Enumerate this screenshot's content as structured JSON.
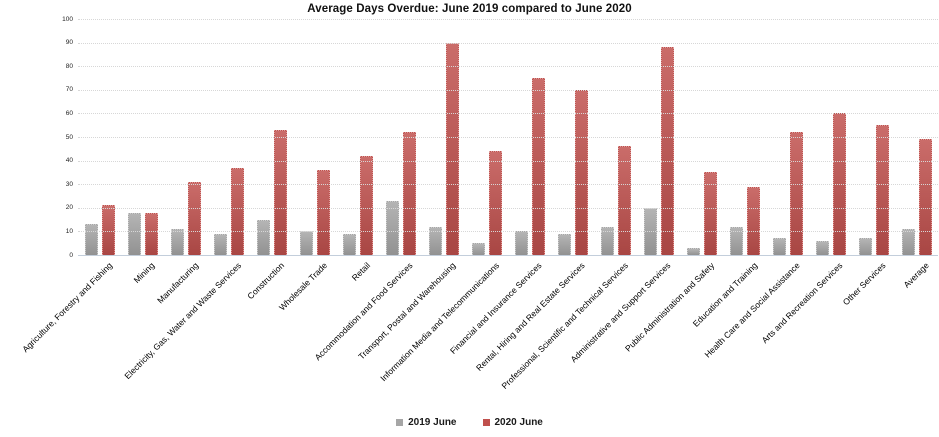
{
  "title": "Average Days Overdue: June 2019 compared to June 2020",
  "colors": {
    "series_2019": "#a6a6a6",
    "series_2020": "#c0504d",
    "gridline": "#d7d7d7",
    "axis_line": "#c3cedb",
    "background": "#ffffff"
  },
  "legend": [
    {
      "label": "2019 June",
      "color": "#a6a6a6"
    },
    {
      "label": "2020 June",
      "color": "#c0504d"
    }
  ],
  "chart_data": {
    "type": "bar",
    "title": "Average Days Overdue: June 2019 compared to June 2020",
    "xlabel": "",
    "ylabel": "",
    "ylim": [
      0,
      100
    ],
    "yticks": [
      0,
      10,
      20,
      30,
      40,
      50,
      60,
      70,
      80,
      90,
      100
    ],
    "grid": true,
    "grid_style": "dotted",
    "legend_position": "bottom",
    "categories": [
      "Agriculture, Forestry and Fishing",
      "Mining",
      "Manufacturing",
      "Electricity, Gas, Water and Waste Services",
      "Construction",
      "Wholesale Trade",
      "Retail",
      "Accommodation and Food Services",
      "Transport, Postal and Warehousing",
      "Information Media and Telecommunications",
      "Financial and Insurance Services",
      "Rental, Hiring and Real Estate Services",
      "Professional, Scientific and Technical Services",
      "Administrative and Support Services",
      "Public Administration and Safety",
      "Education and Training",
      "Health Care and Social Assistance",
      "Arts and Recreation Services",
      "Other Services",
      "Average"
    ],
    "series": [
      {
        "name": "2019 June",
        "color": "#a6a6a6",
        "values": [
          13,
          18,
          11,
          9,
          15,
          10,
          9,
          23,
          12,
          5,
          10,
          9,
          12,
          20,
          3,
          12,
          7,
          6,
          7,
          11
        ]
      },
      {
        "name": "2020 June",
        "color": "#c0504d",
        "values": [
          21,
          18,
          31,
          37,
          53,
          36,
          42,
          52,
          90,
          44,
          75,
          70,
          46,
          88,
          35,
          29,
          52,
          60,
          55,
          49
        ]
      }
    ]
  }
}
